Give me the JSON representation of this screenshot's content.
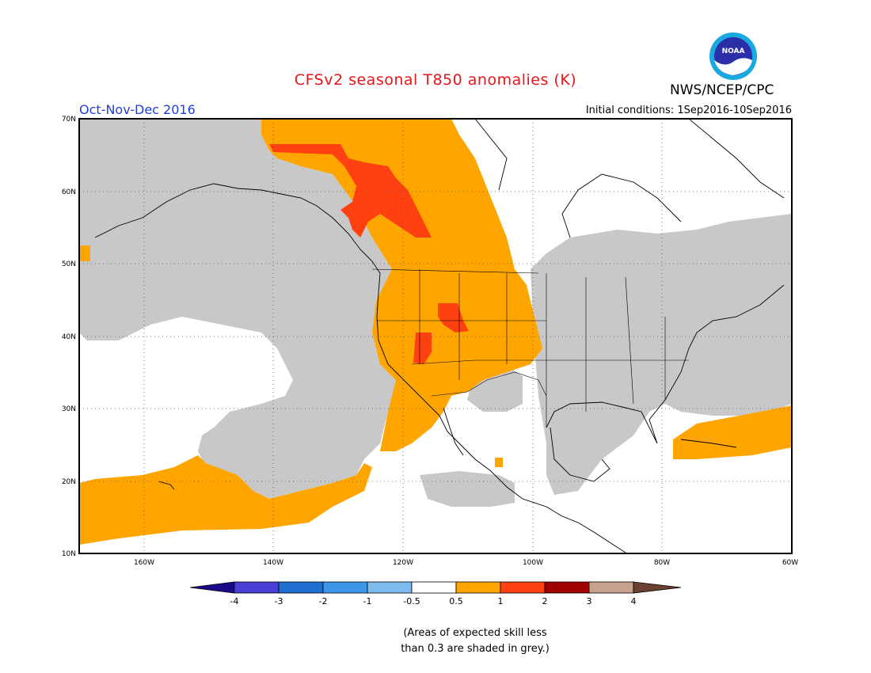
{
  "header": {
    "title": "CFSv2 seasonal T850 anomalies (K)",
    "agency": "NWS/NCEP/CPC",
    "logo_text": "NOAA",
    "season": "Oct-Nov-Dec 2016",
    "initial_conditions": "Initial conditions: 1Sep2016-10Sep2016"
  },
  "map": {
    "lat_labels": [
      "70N",
      "60N",
      "50N",
      "40N",
      "30N",
      "20N",
      "10N"
    ],
    "lon_labels": [
      "160W",
      "140W",
      "120W",
      "100W",
      "80W",
      "60W"
    ],
    "extent": {
      "lon": [
        -170,
        -60
      ],
      "lat": [
        10,
        70
      ]
    }
  },
  "legend": {
    "labels": [
      "-4",
      "-3",
      "-2",
      "-1",
      "-0.5",
      "0.5",
      "1",
      "2",
      "3",
      "4"
    ],
    "colors": [
      "#1a0a8a",
      "#4a3fd4",
      "#1f6fd0",
      "#3c96ea",
      "#7dbbee",
      "#ffffff",
      "#ffa500",
      "#ff4010",
      "#a00000",
      "#c8a090",
      "#6b4030"
    ]
  },
  "note": {
    "line1": "(Areas of expected skill less",
    "line2": "than 0.3 are shaded in grey.)"
  },
  "colors": {
    "grey_low_skill": "#c8c8c8",
    "orange": "#ffa500",
    "red": "#ff4010",
    "title_red": "#e8161b",
    "season_blue": "#2340d8"
  }
}
